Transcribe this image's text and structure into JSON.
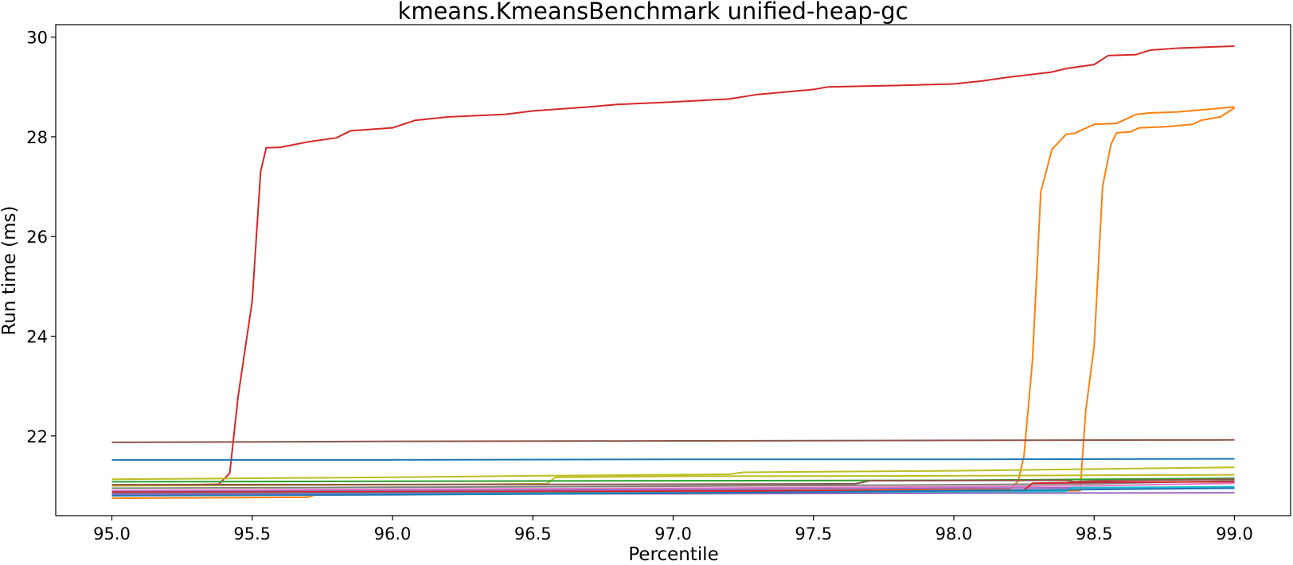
{
  "chart_data": {
    "type": "line",
    "title": "kmeans.KmeansBenchmark unified-heap-gc",
    "xlabel": "Percentile",
    "ylabel": "Run time (ms)",
    "xlim": [
      94.8,
      99.2
    ],
    "ylim": [
      20.4,
      30.25
    ],
    "xticks": [
      95.0,
      95.5,
      96.0,
      96.5,
      97.0,
      97.5,
      98.0,
      98.5,
      99.0
    ],
    "xtick_labels": [
      "95.0",
      "95.5",
      "96.0",
      "96.5",
      "97.0",
      "97.5",
      "98.0",
      "98.5",
      "99.0"
    ],
    "yticks": [
      22,
      24,
      26,
      28,
      30
    ],
    "ytick_labels": [
      "22",
      "24",
      "26",
      "28",
      "30"
    ],
    "grid": false,
    "legend": "none",
    "series": [
      {
        "color": "#d62728",
        "points": [
          [
            95.0,
            21.0
          ],
          [
            95.38,
            21.03
          ],
          [
            95.42,
            21.25
          ],
          [
            95.45,
            22.8
          ],
          [
            95.5,
            24.7
          ],
          [
            95.53,
            27.3
          ],
          [
            95.55,
            27.78
          ],
          [
            95.6,
            27.79
          ],
          [
            95.7,
            27.9
          ],
          [
            95.8,
            27.98
          ],
          [
            95.85,
            28.12
          ],
          [
            96.0,
            28.18
          ],
          [
            96.08,
            28.33
          ],
          [
            96.2,
            28.4
          ],
          [
            96.4,
            28.45
          ],
          [
            96.5,
            28.52
          ],
          [
            96.7,
            28.6
          ],
          [
            96.8,
            28.65
          ],
          [
            97.0,
            28.7
          ],
          [
            97.2,
            28.76
          ],
          [
            97.3,
            28.85
          ],
          [
            97.5,
            28.95
          ],
          [
            97.55,
            29.0
          ],
          [
            97.8,
            29.03
          ],
          [
            98.0,
            29.06
          ],
          [
            98.1,
            29.12
          ],
          [
            98.2,
            29.2
          ],
          [
            98.35,
            29.3
          ],
          [
            98.4,
            29.37
          ],
          [
            98.5,
            29.45
          ],
          [
            98.55,
            29.63
          ],
          [
            98.65,
            29.65
          ],
          [
            98.7,
            29.74
          ],
          [
            98.8,
            29.78
          ],
          [
            98.9,
            29.8
          ],
          [
            99.0,
            29.82
          ]
        ]
      },
      {
        "color": "#ff7f0e",
        "points": [
          [
            95.0,
            20.75
          ],
          [
            95.7,
            20.77
          ],
          [
            95.75,
            20.87
          ],
          [
            96.5,
            20.9
          ],
          [
            98.2,
            20.93
          ],
          [
            98.23,
            21.1
          ],
          [
            98.25,
            21.6
          ],
          [
            98.28,
            23.5
          ],
          [
            98.31,
            26.9
          ],
          [
            98.35,
            27.75
          ],
          [
            98.4,
            28.05
          ],
          [
            98.43,
            28.07
          ],
          [
            98.5,
            28.25
          ],
          [
            98.58,
            28.27
          ],
          [
            98.65,
            28.45
          ],
          [
            98.7,
            28.48
          ],
          [
            98.8,
            28.5
          ],
          [
            98.9,
            28.55
          ],
          [
            99.0,
            28.6
          ]
        ]
      },
      {
        "color": "#ff7f0e",
        "points": [
          [
            95.0,
            20.82
          ],
          [
            96.0,
            20.84
          ],
          [
            97.0,
            20.86
          ],
          [
            98.0,
            20.88
          ],
          [
            98.45,
            20.9
          ],
          [
            98.47,
            22.5
          ],
          [
            98.5,
            23.8
          ],
          [
            98.53,
            27.0
          ],
          [
            98.56,
            27.85
          ],
          [
            98.58,
            28.08
          ],
          [
            98.63,
            28.1
          ],
          [
            98.66,
            28.18
          ],
          [
            98.75,
            28.2
          ],
          [
            98.85,
            28.25
          ],
          [
            98.88,
            28.33
          ],
          [
            98.95,
            28.4
          ],
          [
            99.0,
            28.58
          ]
        ]
      },
      {
        "color": "#8c564b",
        "points": [
          [
            95.0,
            21.87
          ],
          [
            96.0,
            21.89
          ],
          [
            97.0,
            21.9
          ],
          [
            98.0,
            21.91
          ],
          [
            99.0,
            21.92
          ]
        ]
      },
      {
        "color": "#1f77b4",
        "points": [
          [
            95.0,
            21.52
          ],
          [
            96.0,
            21.52
          ],
          [
            97.0,
            21.53
          ],
          [
            98.0,
            21.53
          ],
          [
            99.0,
            21.54
          ]
        ]
      },
      {
        "color": "#bcbd22",
        "points": [
          [
            95.0,
            21.13
          ],
          [
            96.0,
            21.17
          ],
          [
            96.5,
            21.2
          ],
          [
            97.0,
            21.22
          ],
          [
            97.2,
            21.23
          ],
          [
            97.25,
            21.27
          ],
          [
            98.0,
            21.3
          ],
          [
            99.0,
            21.37
          ]
        ]
      },
      {
        "color": "#bcbd22",
        "points": [
          [
            95.0,
            21.0
          ],
          [
            96.0,
            21.02
          ],
          [
            96.55,
            21.04
          ],
          [
            96.58,
            21.17
          ],
          [
            97.0,
            21.19
          ],
          [
            98.0,
            21.2
          ],
          [
            99.0,
            21.22
          ]
        ]
      },
      {
        "color": "#2ca02c",
        "points": [
          [
            95.0,
            21.08
          ],
          [
            96.0,
            21.09
          ],
          [
            97.0,
            21.1
          ],
          [
            98.0,
            21.11
          ],
          [
            99.0,
            21.15
          ]
        ]
      },
      {
        "color": "#8c564b",
        "points": [
          [
            95.0,
            21.02
          ],
          [
            97.0,
            21.03
          ],
          [
            97.65,
            21.04
          ],
          [
            97.7,
            21.1
          ],
          [
            98.4,
            21.11
          ],
          [
            98.43,
            21.08
          ],
          [
            98.5,
            21.1
          ],
          [
            99.0,
            21.13
          ]
        ]
      },
      {
        "color": "#7f7f7f",
        "points": [
          [
            95.0,
            20.95
          ],
          [
            96.0,
            20.97
          ],
          [
            97.0,
            20.99
          ],
          [
            98.0,
            21.02
          ],
          [
            98.5,
            21.04
          ],
          [
            99.0,
            21.1
          ]
        ]
      },
      {
        "color": "#e377c2",
        "points": [
          [
            95.0,
            20.9
          ],
          [
            96.0,
            20.93
          ],
          [
            97.0,
            20.95
          ],
          [
            98.0,
            20.98
          ],
          [
            98.5,
            21.0
          ],
          [
            99.0,
            21.05
          ]
        ]
      },
      {
        "color": "#9467bd",
        "points": [
          [
            95.0,
            20.88
          ],
          [
            96.0,
            20.9
          ],
          [
            97.0,
            20.92
          ],
          [
            98.0,
            20.95
          ],
          [
            99.0,
            20.97
          ]
        ]
      },
      {
        "color": "#17becf",
        "points": [
          [
            95.0,
            20.85
          ],
          [
            97.0,
            20.87
          ],
          [
            98.0,
            20.88
          ],
          [
            98.4,
            20.89
          ],
          [
            98.42,
            20.96
          ],
          [
            99.0,
            20.98
          ]
        ]
      },
      {
        "color": "#d62728",
        "points": [
          [
            95.0,
            20.87
          ],
          [
            97.0,
            20.89
          ],
          [
            98.25,
            20.91
          ],
          [
            98.28,
            21.05
          ],
          [
            98.5,
            21.07
          ],
          [
            99.0,
            21.08
          ]
        ]
      },
      {
        "color": "#9467bd",
        "points": [
          [
            95.0,
            20.83
          ],
          [
            97.0,
            20.84
          ],
          [
            98.0,
            20.85
          ],
          [
            99.0,
            20.86
          ]
        ]
      },
      {
        "color": "#1f77b4",
        "points": [
          [
            95.0,
            20.8
          ],
          [
            96.0,
            20.82
          ],
          [
            97.0,
            20.85
          ],
          [
            98.0,
            20.9
          ],
          [
            99.0,
            20.95
          ]
        ]
      }
    ]
  }
}
